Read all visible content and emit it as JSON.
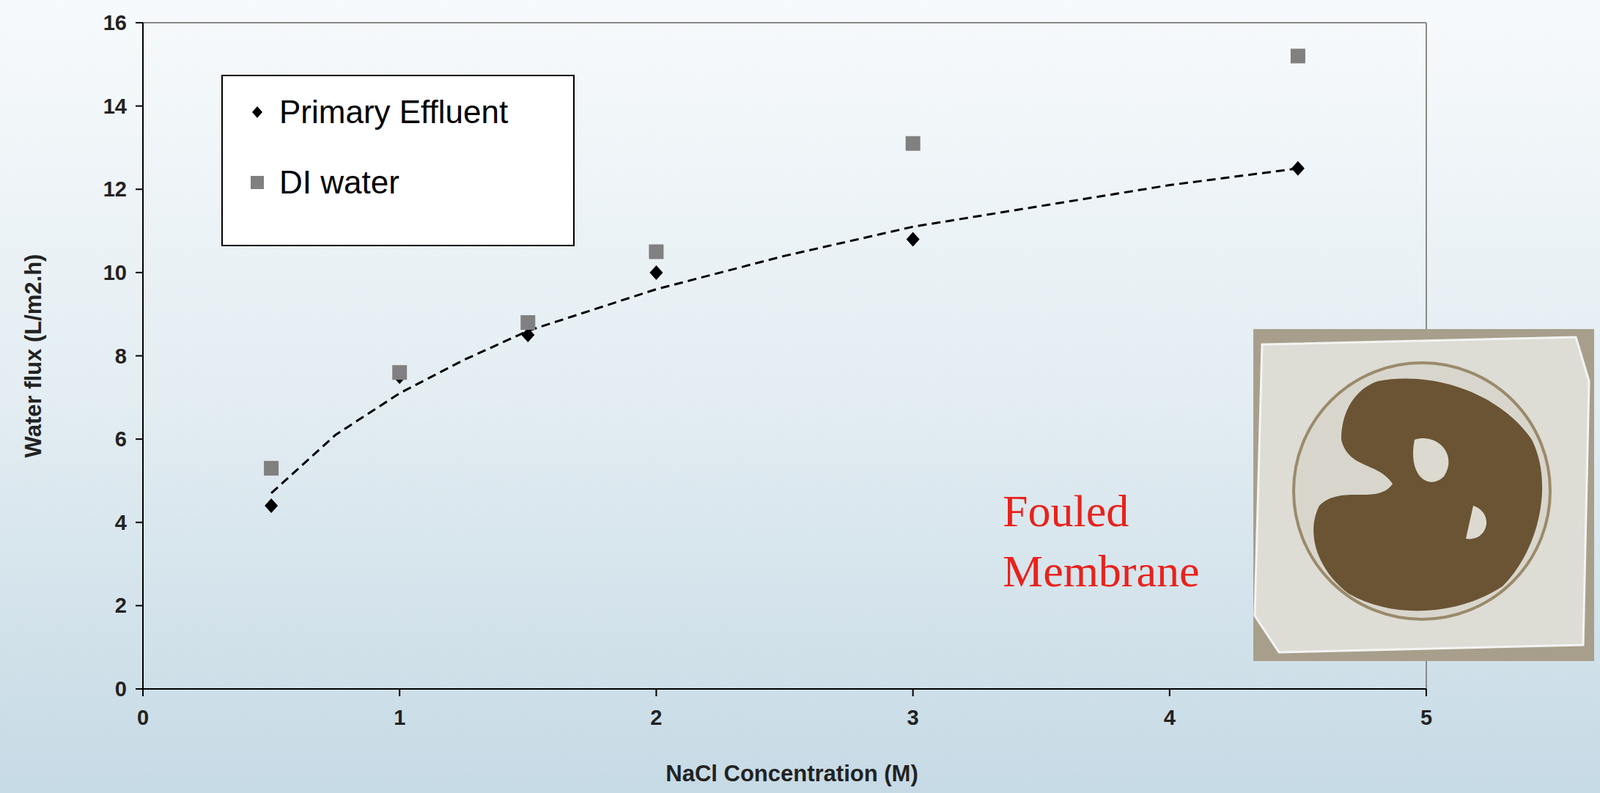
{
  "chart_data": {
    "type": "scatter",
    "x_label": "NaCl Concentration (M)",
    "y_label": "Water flux (L/m2.h)",
    "x": [
      0.5,
      1,
      1.5,
      2,
      3,
      4.5
    ],
    "series": [
      {
        "name": "Primary Effluent",
        "color": "#000000",
        "marker": "diamond",
        "values": [
          4.4,
          7.5,
          8.5,
          10.0,
          10.8,
          12.5
        ]
      },
      {
        "name": "DI water",
        "color": "#808080",
        "marker": "square",
        "values": [
          5.3,
          7.6,
          8.8,
          10.5,
          13.1,
          15.2
        ]
      },
      {
        "type": "line",
        "color": "#000000",
        "line_style": "dashed",
        "marker": "none",
        "x": [
          0.5,
          0.75,
          1,
          1.25,
          1.5,
          2,
          2.5,
          3,
          3.5,
          4,
          4.5
        ],
        "values": [
          4.7,
          6.1,
          7.1,
          7.9,
          8.6,
          9.6,
          10.4,
          11.1,
          11.6,
          12.1,
          12.5
        ]
      }
    ],
    "xlim": [
      0,
      5
    ],
    "ylim": [
      0,
      16
    ],
    "xticks": [
      0,
      1,
      2,
      3,
      4,
      5
    ],
    "yticks": [
      0,
      2,
      4,
      6,
      8,
      10,
      12,
      14,
      16
    ],
    "grid": false,
    "legend": "upper left",
    "annotations": [
      {
        "text": "Fouled Membrane",
        "color": "#e8221b"
      }
    ]
  }
}
